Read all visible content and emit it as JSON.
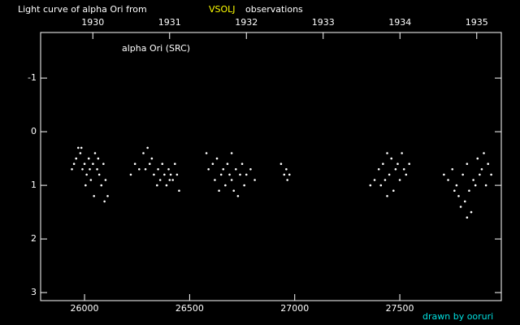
{
  "chart_data": {
    "type": "scatter",
    "title": "Light curve of alpha Ori from",
    "title_source": "VSOLJ",
    "title_suffix": "observations",
    "credit": "drawn by ooruri",
    "series": [
      {
        "name": "alpha Ori (SRC)",
        "color": "#ffffff",
        "x": [
          25950,
          25960,
          25970,
          25980,
          25990,
          26000,
          26010,
          26020,
          26030,
          26040,
          26050,
          26060,
          26070,
          26080,
          26090,
          26100,
          26110,
          26045,
          26095,
          25985,
          26025,
          26065,
          26005,
          25940,
          26220,
          26240,
          26260,
          26280,
          26300,
          26310,
          26320,
          26330,
          26350,
          26360,
          26370,
          26380,
          26390,
          26400,
          26410,
          26420,
          26430,
          26440,
          26450,
          26345,
          26290,
          26405,
          26580,
          26590,
          26610,
          26620,
          26630,
          26650,
          26660,
          26670,
          26680,
          26690,
          26700,
          26710,
          26720,
          26730,
          26740,
          26750,
          26760,
          26770,
          26790,
          26810,
          26700,
          26640,
          26935,
          26950,
          26960,
          26975,
          26965,
          27360,
          27380,
          27400,
          27410,
          27420,
          27430,
          27440,
          27450,
          27460,
          27470,
          27480,
          27490,
          27500,
          27510,
          27520,
          27530,
          27545,
          27440,
          27710,
          27730,
          27750,
          27760,
          27770,
          27780,
          27790,
          27800,
          27810,
          27820,
          27830,
          27840,
          27850,
          27860,
          27870,
          27880,
          27890,
          27900,
          27910,
          27920,
          27935,
          27820
        ],
        "values": [
          0.6,
          0.5,
          0.3,
          0.4,
          0.7,
          0.6,
          0.8,
          0.5,
          0.9,
          0.6,
          0.4,
          0.7,
          0.8,
          1.0,
          0.6,
          0.9,
          1.2,
          1.2,
          1.3,
          0.3,
          0.7,
          0.5,
          1.0,
          0.7,
          0.8,
          0.6,
          0.7,
          0.4,
          0.3,
          0.6,
          0.5,
          0.8,
          0.7,
          0.9,
          0.6,
          0.8,
          1.0,
          0.7,
          0.8,
          0.9,
          0.6,
          0.8,
          1.1,
          1.0,
          0.7,
          0.9,
          0.4,
          0.7,
          0.6,
          0.9,
          0.5,
          0.8,
          0.7,
          1.0,
          0.6,
          0.8,
          0.9,
          1.1,
          0.7,
          1.2,
          0.8,
          0.6,
          1.0,
          0.8,
          0.7,
          0.9,
          0.4,
          1.1,
          0.6,
          0.8,
          0.7,
          0.8,
          0.9,
          1.0,
          0.9,
          0.7,
          1.0,
          0.6,
          0.9,
          0.4,
          0.8,
          0.5,
          1.1,
          0.7,
          0.6,
          0.9,
          0.4,
          0.7,
          0.8,
          0.6,
          1.2,
          0.8,
          0.9,
          0.7,
          1.1,
          1.0,
          1.2,
          1.4,
          0.8,
          1.3,
          0.6,
          1.1,
          1.5,
          0.9,
          1.0,
          0.5,
          0.8,
          0.7,
          0.4,
          1.0,
          0.6,
          0.8,
          1.6
        ]
      }
    ],
    "xlim": [
      25791,
      27983
    ],
    "xticks": [
      26000,
      26500,
      27000,
      27500
    ],
    "x2lim": [
      1929.32,
      1935.32
    ],
    "x2ticks": [
      1930,
      1931,
      1932,
      1933,
      1934,
      1935
    ],
    "ylim": [
      -1.85,
      3.15
    ],
    "y_inverted": true,
    "yticks": [
      -1,
      0,
      1,
      2,
      3
    ]
  }
}
